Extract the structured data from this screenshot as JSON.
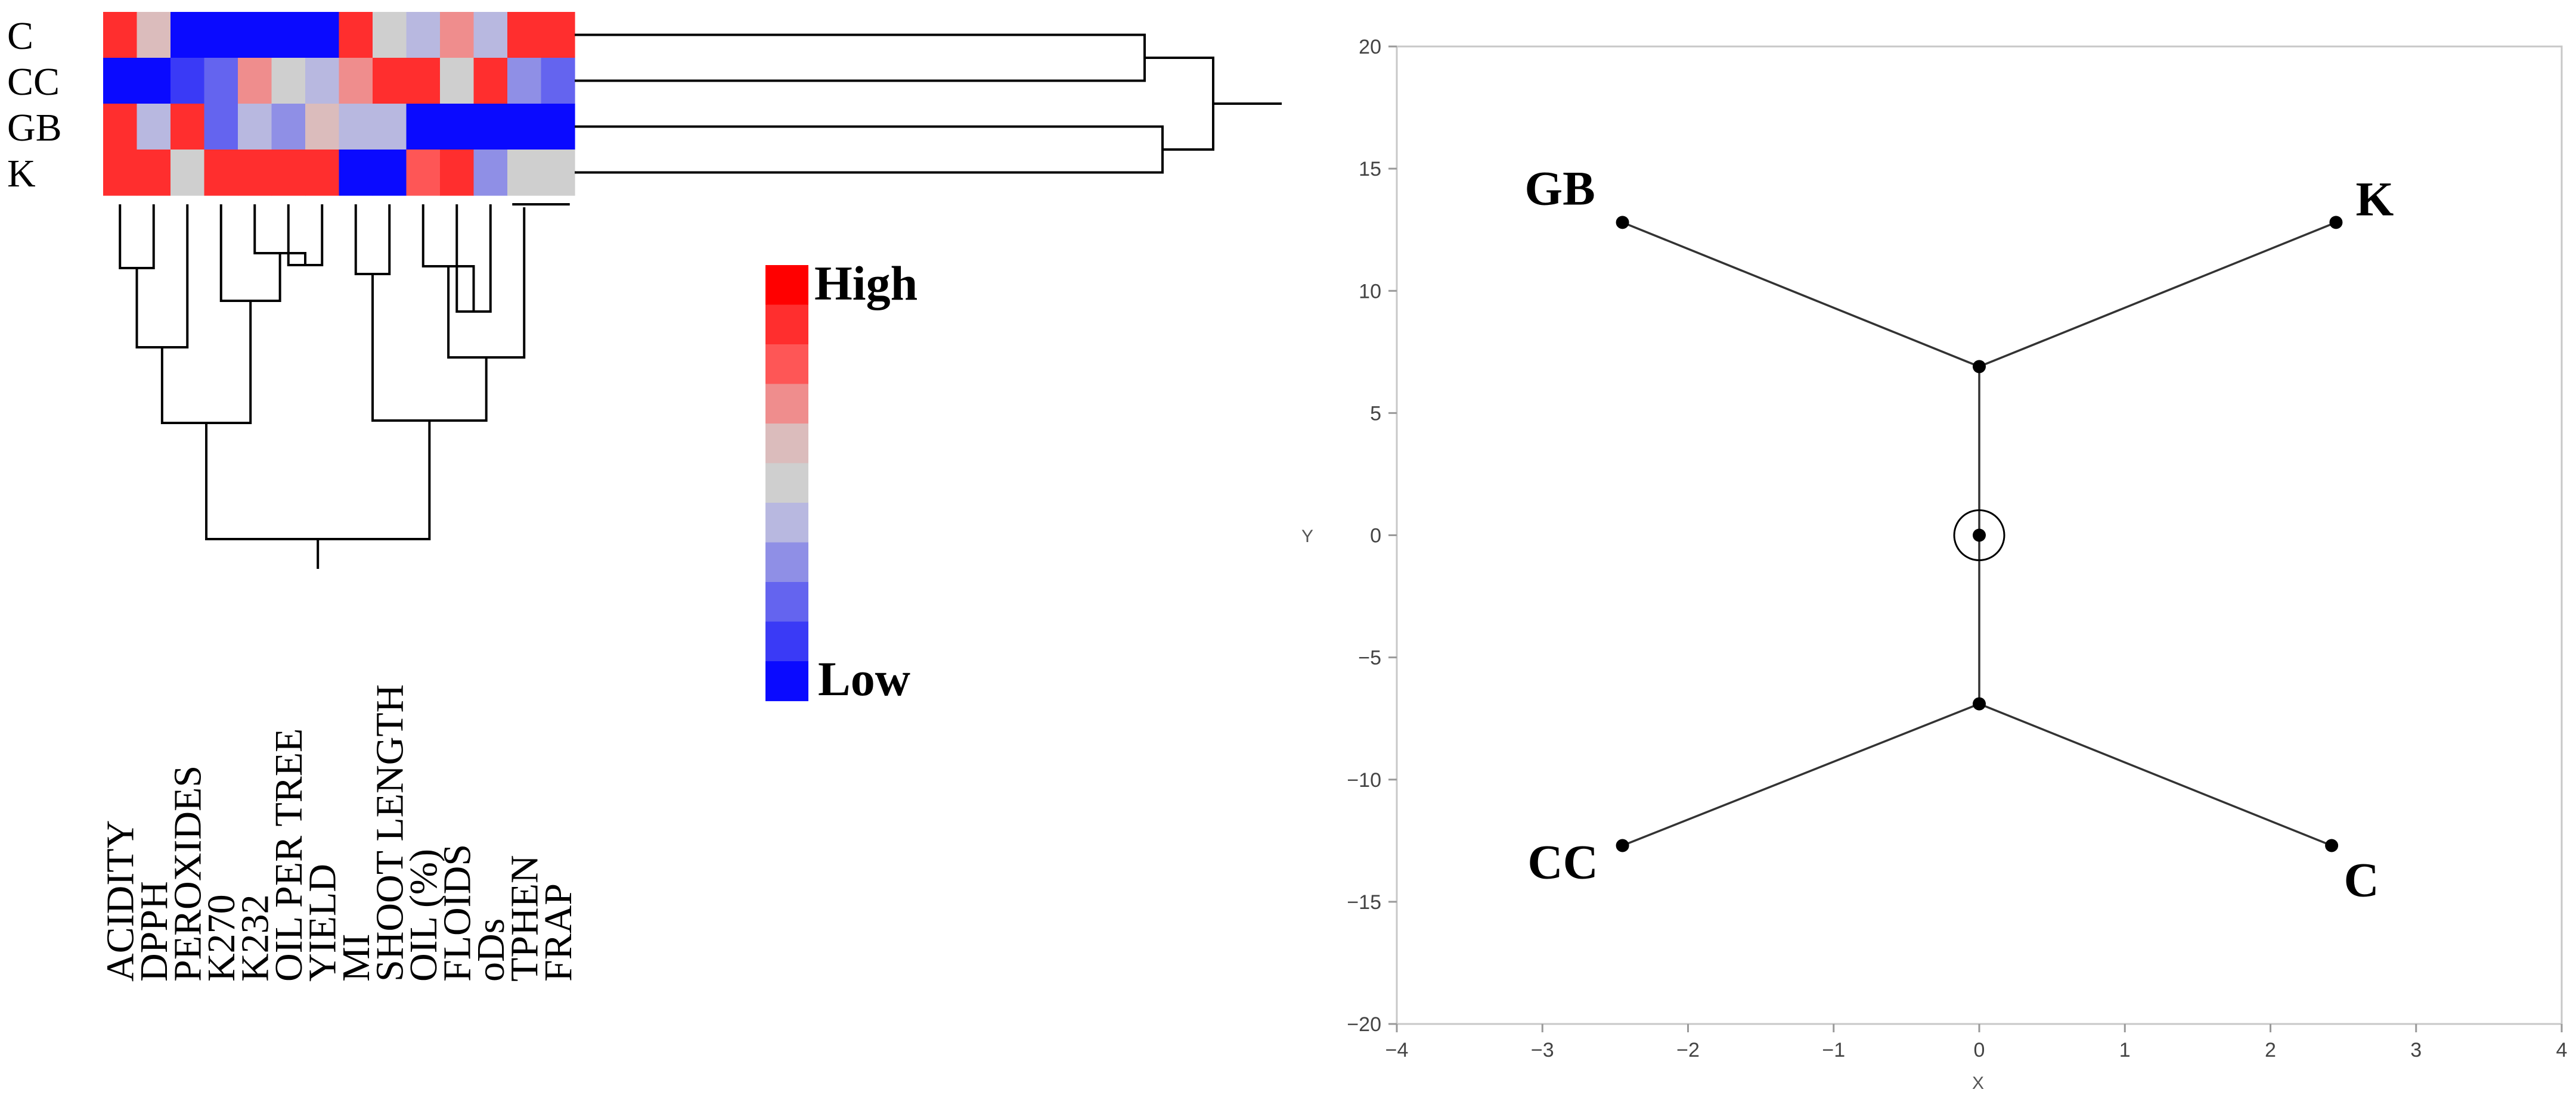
{
  "heatmap": {
    "rows": [
      "C",
      "CC",
      "GB",
      "K"
    ],
    "columns": [
      "ACIDITY",
      "DPPH",
      "PEROXIDES",
      "K270",
      "K232",
      "OIL PER TREE",
      "YIELD",
      "MI",
      "SHOOT LENGTH",
      "OIL (%)",
      "FLOIDS",
      "oDs",
      "TPHEN",
      "FRAP"
    ],
    "cell_levels": [
      [
        9,
        6,
        0,
        0,
        0,
        0,
        0,
        9,
        5,
        4,
        7,
        4,
        9,
        9
      ],
      [
        0,
        0,
        1,
        2,
        7,
        5,
        4,
        7,
        9,
        9,
        5,
        9,
        3,
        2
      ],
      [
        9,
        4,
        9,
        2,
        4,
        3,
        6,
        4,
        4,
        0,
        0,
        0,
        0,
        0
      ],
      [
        9,
        9,
        5,
        9,
        9,
        9,
        9,
        0,
        0,
        8,
        9,
        3,
        5,
        5
      ]
    ]
  },
  "legend": {
    "high_label": "High",
    "low_label": "Low",
    "colors": [
      "#ff0000",
      "#ff2e2e",
      "#fe5656",
      "#ef8d8d",
      "#dbbcbc",
      "#cfcfcf",
      "#b8b8e0",
      "#8f8fe6",
      "#6464ef",
      "#3a3af6",
      "#0a0aff"
    ]
  },
  "chart_data": {
    "type": "scatter",
    "xlim": [
      -4,
      4
    ],
    "ylim": [
      -20,
      20
    ],
    "xlabel": "X",
    "ylabel": "Y",
    "xticks": [
      -4,
      -3,
      -2,
      -1,
      0,
      1,
      2,
      3,
      4
    ],
    "yticks": [
      -20,
      -15,
      -10,
      -5,
      0,
      5,
      10,
      15,
      20
    ],
    "grid": false,
    "points": [
      {
        "label": "GB",
        "x": -2.45,
        "y": 12.8
      },
      {
        "label": "K",
        "x": 2.45,
        "y": 12.8
      },
      {
        "label": "CC",
        "x": -2.45,
        "y": -12.7
      },
      {
        "label": "C",
        "x": 2.42,
        "y": -12.7
      }
    ],
    "inner_nodes": [
      {
        "x": 0,
        "y": 6.9
      },
      {
        "x": 0,
        "y": -6.9
      }
    ],
    "center": {
      "x": 0,
      "y": 0
    },
    "edges": [
      [
        "GB",
        0
      ],
      [
        "K",
        0
      ],
      [
        0,
        1
      ],
      [
        "CC",
        1
      ],
      [
        "C",
        1
      ]
    ]
  }
}
